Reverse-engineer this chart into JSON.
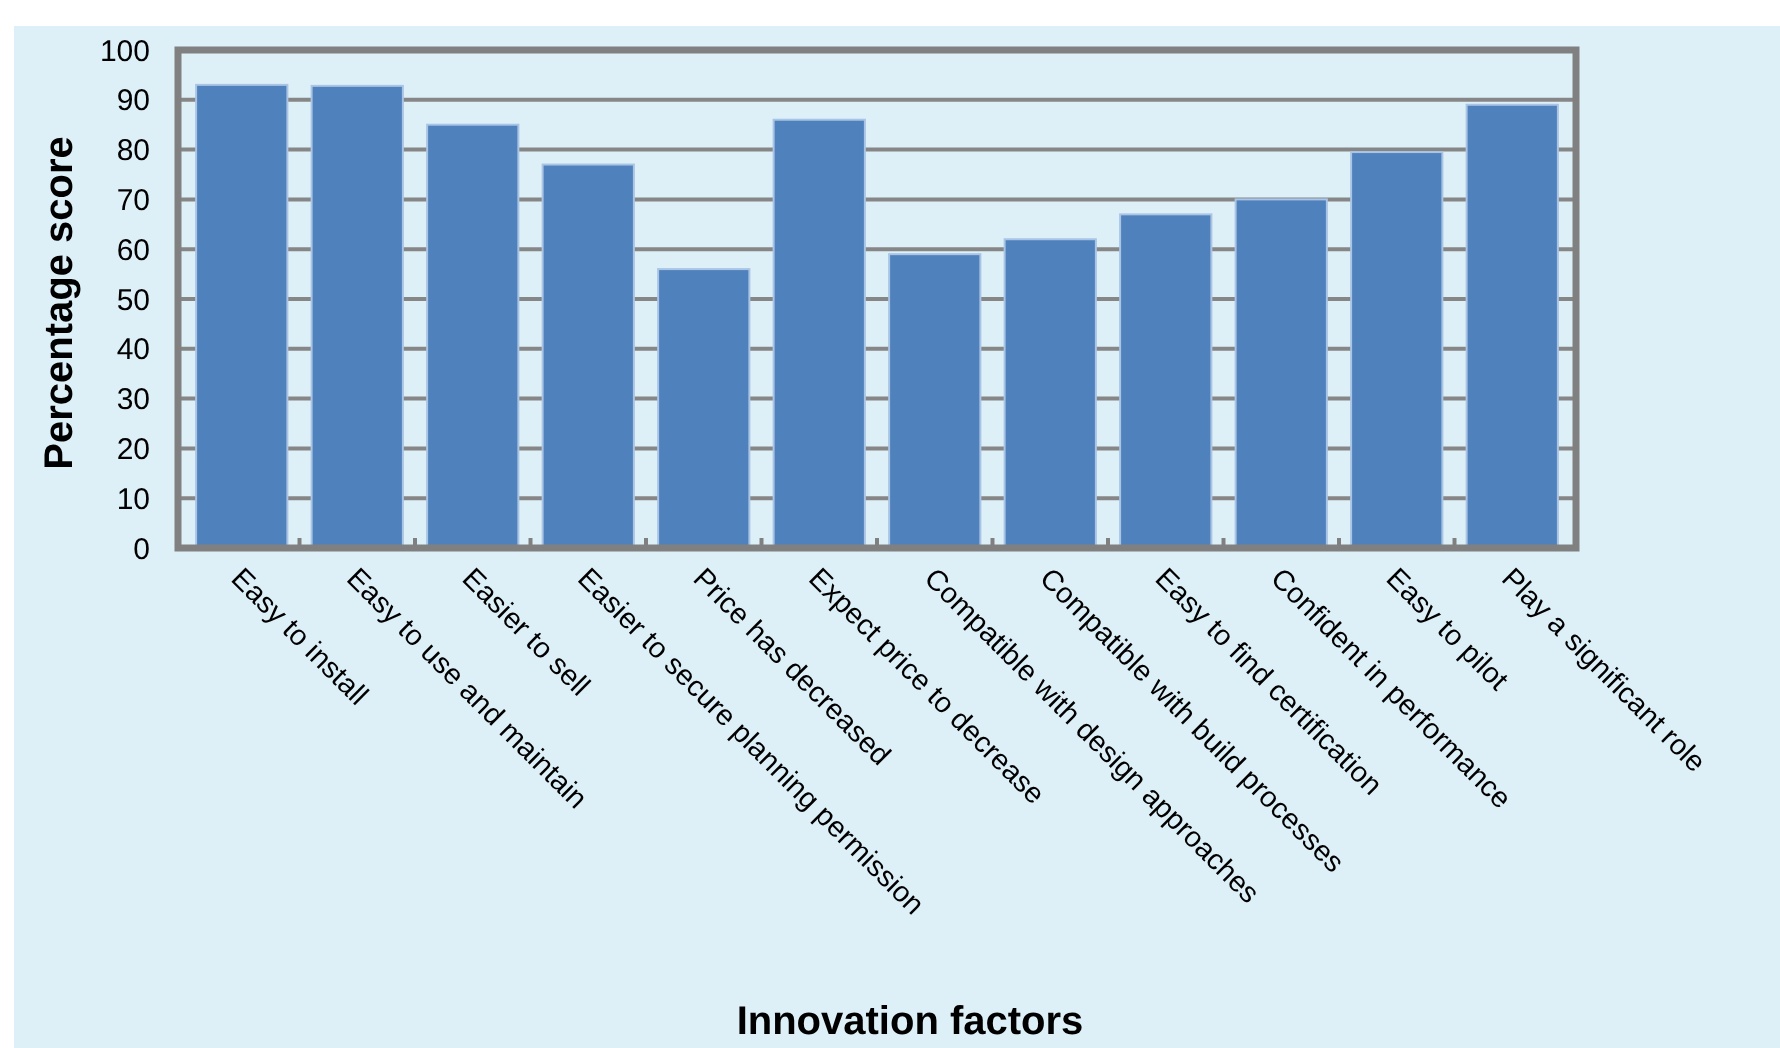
{
  "chart_data": {
    "type": "bar",
    "xlabel": "Innovation factors",
    "ylabel": "Percentage score",
    "categories": [
      "Easy to install",
      "Easy to use and maintain",
      "Easier to sell",
      "Easier to secure planning permission",
      "Price has decreased",
      "Expect price to decrease",
      "Compatible with design approaches",
      "Compatible with build processes",
      "Easy to find certification",
      "Confident in performance",
      "Easy to pilot",
      "Play a significant role"
    ],
    "values": [
      93,
      92.8,
      85,
      77,
      56,
      86,
      59,
      62,
      67,
      70,
      79.5,
      89
    ],
    "color": "#4f81bd",
    "ylim": [
      0,
      100
    ],
    "yticks": [
      0,
      10,
      20,
      30,
      40,
      50,
      60,
      70,
      80,
      90,
      100
    ],
    "grid": "y"
  }
}
